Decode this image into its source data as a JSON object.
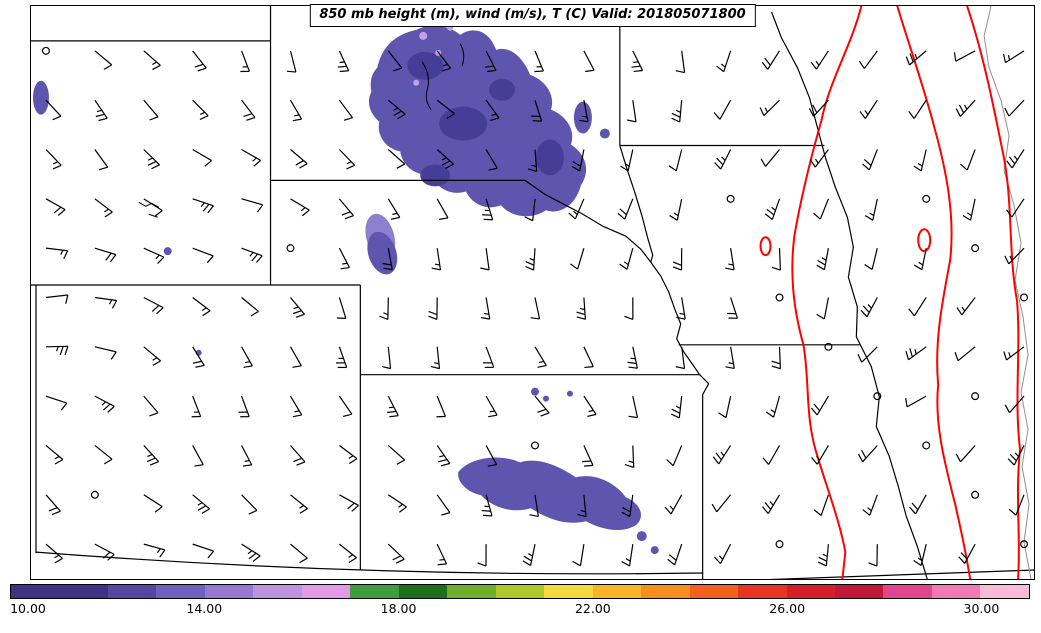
{
  "title": "850 mb height (m), wind (m/s), T (C) Valid: 201805071800",
  "colorbar": {
    "min": 10,
    "max": 31,
    "tick_labels": [
      "10.00",
      "14.00",
      "18.00",
      "22.00",
      "26.00",
      "30.00"
    ],
    "tick_values": [
      10,
      14,
      18,
      22,
      26,
      30
    ],
    "segments": [
      {
        "from": 10,
        "to": 12,
        "color": "#3b3383"
      },
      {
        "from": 12,
        "to": 13,
        "color": "#52489f"
      },
      {
        "from": 13,
        "to": 14,
        "color": "#7060bd"
      },
      {
        "from": 14,
        "to": 15,
        "color": "#9379cf"
      },
      {
        "from": 15,
        "to": 16,
        "color": "#bb93e0"
      },
      {
        "from": 16,
        "to": 17,
        "color": "#e29ae6"
      },
      {
        "from": 17,
        "to": 18,
        "color": "#3f9e3a"
      },
      {
        "from": 18,
        "to": 19,
        "color": "#1e6f1e"
      },
      {
        "from": 19,
        "to": 20,
        "color": "#6fae28"
      },
      {
        "from": 20,
        "to": 21,
        "color": "#adc92e"
      },
      {
        "from": 21,
        "to": 22,
        "color": "#f4d93e"
      },
      {
        "from": 22,
        "to": 23,
        "color": "#f9b52a"
      },
      {
        "from": 23,
        "to": 24,
        "color": "#f78f20"
      },
      {
        "from": 24,
        "to": 25,
        "color": "#f2621c"
      },
      {
        "from": 25,
        "to": 26,
        "color": "#e83423"
      },
      {
        "from": 26,
        "to": 27,
        "color": "#d41e2a"
      },
      {
        "from": 27,
        "to": 28,
        "color": "#c0173a"
      },
      {
        "from": 28,
        "to": 29,
        "color": "#e0468e"
      },
      {
        "from": 29,
        "to": 30,
        "color": "#f07ab5"
      },
      {
        "from": 30,
        "to": 31,
        "color": "#f9b9d7"
      }
    ]
  },
  "map": {
    "fill_colors": {
      "shade_main": "#5e55ae",
      "shade_dark": "#453e97",
      "shade_light": "#8d80cf",
      "shade_violet": "#c79fe8"
    },
    "contour_color": "#ff0000",
    "border_color": "#000000",
    "river_color": "#8f8f8f"
  },
  "wind": {
    "barb_color": "#000000"
  }
}
